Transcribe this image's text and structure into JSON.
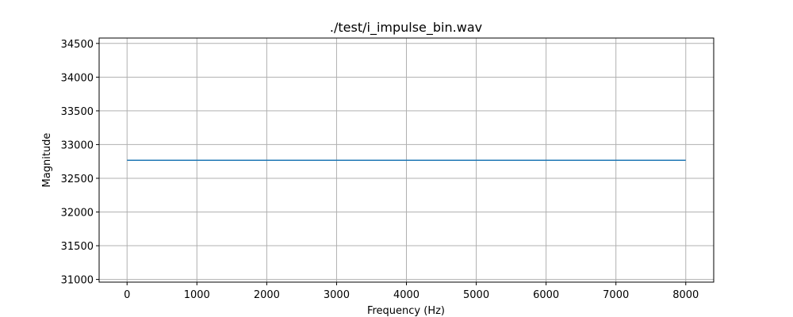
{
  "chart_data": {
    "type": "line",
    "title": "./test/i_impulse_bin.wav",
    "xlabel": "Frequency (Hz)",
    "ylabel": "Magnitude",
    "xlim": [
      -400,
      8400
    ],
    "ylim": [
      30960,
      34580
    ],
    "grid": true,
    "x_ticks": [
      0,
      1000,
      2000,
      3000,
      4000,
      5000,
      6000,
      7000,
      8000
    ],
    "y_ticks": [
      31000,
      31500,
      32000,
      32500,
      33000,
      33500,
      34000,
      34500
    ],
    "series": [
      {
        "color": "#1f77b4",
        "x": [
          0,
          8000
        ],
        "y": [
          32767,
          32767
        ]
      }
    ]
  }
}
